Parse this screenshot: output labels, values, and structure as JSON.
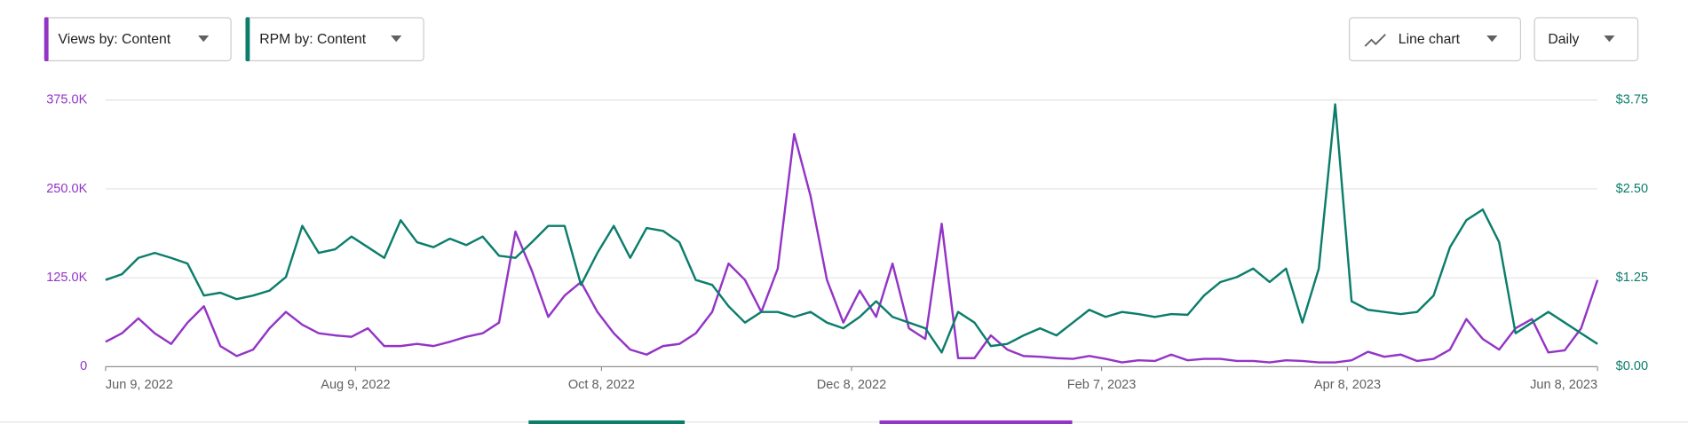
{
  "controls": {
    "chart_type": "Line chart",
    "interval": "Daily"
  },
  "chart_data": {
    "type": "line",
    "x": [
      "2022-06-09",
      "2022-06-13",
      "2022-06-17",
      "2022-06-21",
      "2022-06-25",
      "2022-06-29",
      "2022-07-03",
      "2022-07-07",
      "2022-07-11",
      "2022-07-15",
      "2022-07-19",
      "2022-07-23",
      "2022-07-27",
      "2022-07-31",
      "2022-08-04",
      "2022-08-08",
      "2022-08-12",
      "2022-08-16",
      "2022-08-20",
      "2022-08-24",
      "2022-08-28",
      "2022-09-01",
      "2022-09-05",
      "2022-09-09",
      "2022-09-13",
      "2022-09-17",
      "2022-09-21",
      "2022-09-25",
      "2022-09-29",
      "2022-10-03",
      "2022-10-07",
      "2022-10-11",
      "2022-10-15",
      "2022-10-19",
      "2022-10-23",
      "2022-10-27",
      "2022-10-31",
      "2022-11-04",
      "2022-11-08",
      "2022-11-12",
      "2022-11-16",
      "2022-11-20",
      "2022-11-24",
      "2022-11-28",
      "2022-12-02",
      "2022-12-06",
      "2022-12-10",
      "2022-12-14",
      "2022-12-18",
      "2022-12-22",
      "2022-12-26",
      "2022-12-30",
      "2023-01-03",
      "2023-01-07",
      "2023-01-11",
      "2023-01-15",
      "2023-01-19",
      "2023-01-23",
      "2023-01-27",
      "2023-01-31",
      "2023-02-04",
      "2023-02-08",
      "2023-02-12",
      "2023-02-16",
      "2023-02-20",
      "2023-02-24",
      "2023-02-28",
      "2023-03-04",
      "2023-03-08",
      "2023-03-12",
      "2023-03-16",
      "2023-03-20",
      "2023-03-24",
      "2023-03-28",
      "2023-04-01",
      "2023-04-05",
      "2023-04-09",
      "2023-04-13",
      "2023-04-17",
      "2023-04-21",
      "2023-04-25",
      "2023-04-29",
      "2023-05-03",
      "2023-05-07",
      "2023-05-11",
      "2023-05-15",
      "2023-05-19",
      "2023-05-23",
      "2023-05-27",
      "2023-05-31",
      "2023-06-04",
      "2023-06-08"
    ],
    "series": [
      {
        "name": "Views by: Content",
        "color": "#9334c6",
        "axis": "y",
        "values": [
          35000,
          47000,
          68000,
          47000,
          32000,
          62000,
          85000,
          29000,
          15000,
          24000,
          54000,
          77000,
          59000,
          47000,
          44000,
          42000,
          54000,
          29000,
          29000,
          32000,
          29000,
          35000,
          42000,
          47000,
          62000,
          190000,
          135000,
          70000,
          100000,
          119000,
          77000,
          47000,
          24000,
          17000,
          29000,
          32000,
          47000,
          77000,
          145000,
          122000,
          77000,
          138000,
          327000,
          240000,
          122000,
          62000,
          107000,
          70000,
          145000,
          54000,
          39000,
          201000,
          12000,
          12000,
          44000,
          24000,
          15000,
          14000,
          12000,
          11000,
          15000,
          11000,
          6000,
          9000,
          8000,
          17000,
          9000,
          11000,
          11000,
          8000,
          8000,
          6000,
          9000,
          8000,
          6000,
          6000,
          9000,
          21000,
          14000,
          17000,
          8000,
          11000,
          24000,
          67000,
          39000,
          24000,
          54000,
          67000,
          20000,
          23000,
          54000,
          122000
        ]
      },
      {
        "name": "RPM by: Content",
        "color": "#0b7d6b",
        "axis": "y2",
        "values": [
          1.22,
          1.3,
          1.53,
          1.6,
          1.53,
          1.45,
          1.0,
          1.04,
          0.95,
          1.0,
          1.07,
          1.26,
          1.98,
          1.6,
          1.65,
          1.83,
          1.68,
          1.53,
          2.06,
          1.75,
          1.68,
          1.8,
          1.71,
          1.83,
          1.56,
          1.53,
          1.75,
          1.98,
          1.98,
          1.15,
          1.6,
          1.98,
          1.53,
          1.95,
          1.91,
          1.75,
          1.22,
          1.15,
          0.85,
          0.62,
          0.77,
          0.77,
          0.7,
          0.77,
          0.62,
          0.54,
          0.7,
          0.92,
          0.7,
          0.62,
          0.54,
          0.2,
          0.77,
          0.62,
          0.29,
          0.32,
          0.44,
          0.54,
          0.44,
          0.62,
          0.8,
          0.7,
          0.77,
          0.74,
          0.7,
          0.74,
          0.73,
          1.0,
          1.19,
          1.26,
          1.38,
          1.19,
          1.38,
          0.62,
          1.38,
          3.69,
          0.92,
          0.8,
          0.77,
          0.74,
          0.77,
          1.0,
          1.68,
          2.06,
          2.21,
          1.75,
          0.47,
          0.62,
          0.77,
          0.62,
          0.47,
          0.32
        ]
      }
    ],
    "xlim": [
      "2022-06-09",
      "2023-06-08"
    ],
    "xticks": [
      {
        "value": "2022-06-09",
        "label": "Jun 9, 2022"
      },
      {
        "value": "2022-08-09",
        "label": "Aug 9, 2022"
      },
      {
        "value": "2022-10-08",
        "label": "Oct 8, 2022"
      },
      {
        "value": "2022-12-08",
        "label": "Dec 8, 2022"
      },
      {
        "value": "2023-02-07",
        "label": "Feb 7, 2023"
      },
      {
        "value": "2023-04-08",
        "label": "Apr 8, 2023"
      },
      {
        "value": "2023-06-08",
        "label": "Jun 8, 2023"
      }
    ],
    "ylim": [
      0,
      375000
    ],
    "yticks": [
      0,
      {
        "value": 125000,
        "label": "125.0K"
      },
      {
        "value": 250000,
        "label": "250.0K"
      },
      {
        "value": 375000,
        "label": "375.0K"
      }
    ],
    "y2lim": [
      0,
      3.75
    ],
    "y2ticks": [
      {
        "value": 0,
        "label": "$0.00"
      },
      {
        "value": 1.25,
        "label": "$1.25"
      },
      {
        "value": 2.5,
        "label": "$2.50"
      },
      {
        "value": 3.75,
        "label": "$3.75"
      }
    ],
    "grid": true
  }
}
